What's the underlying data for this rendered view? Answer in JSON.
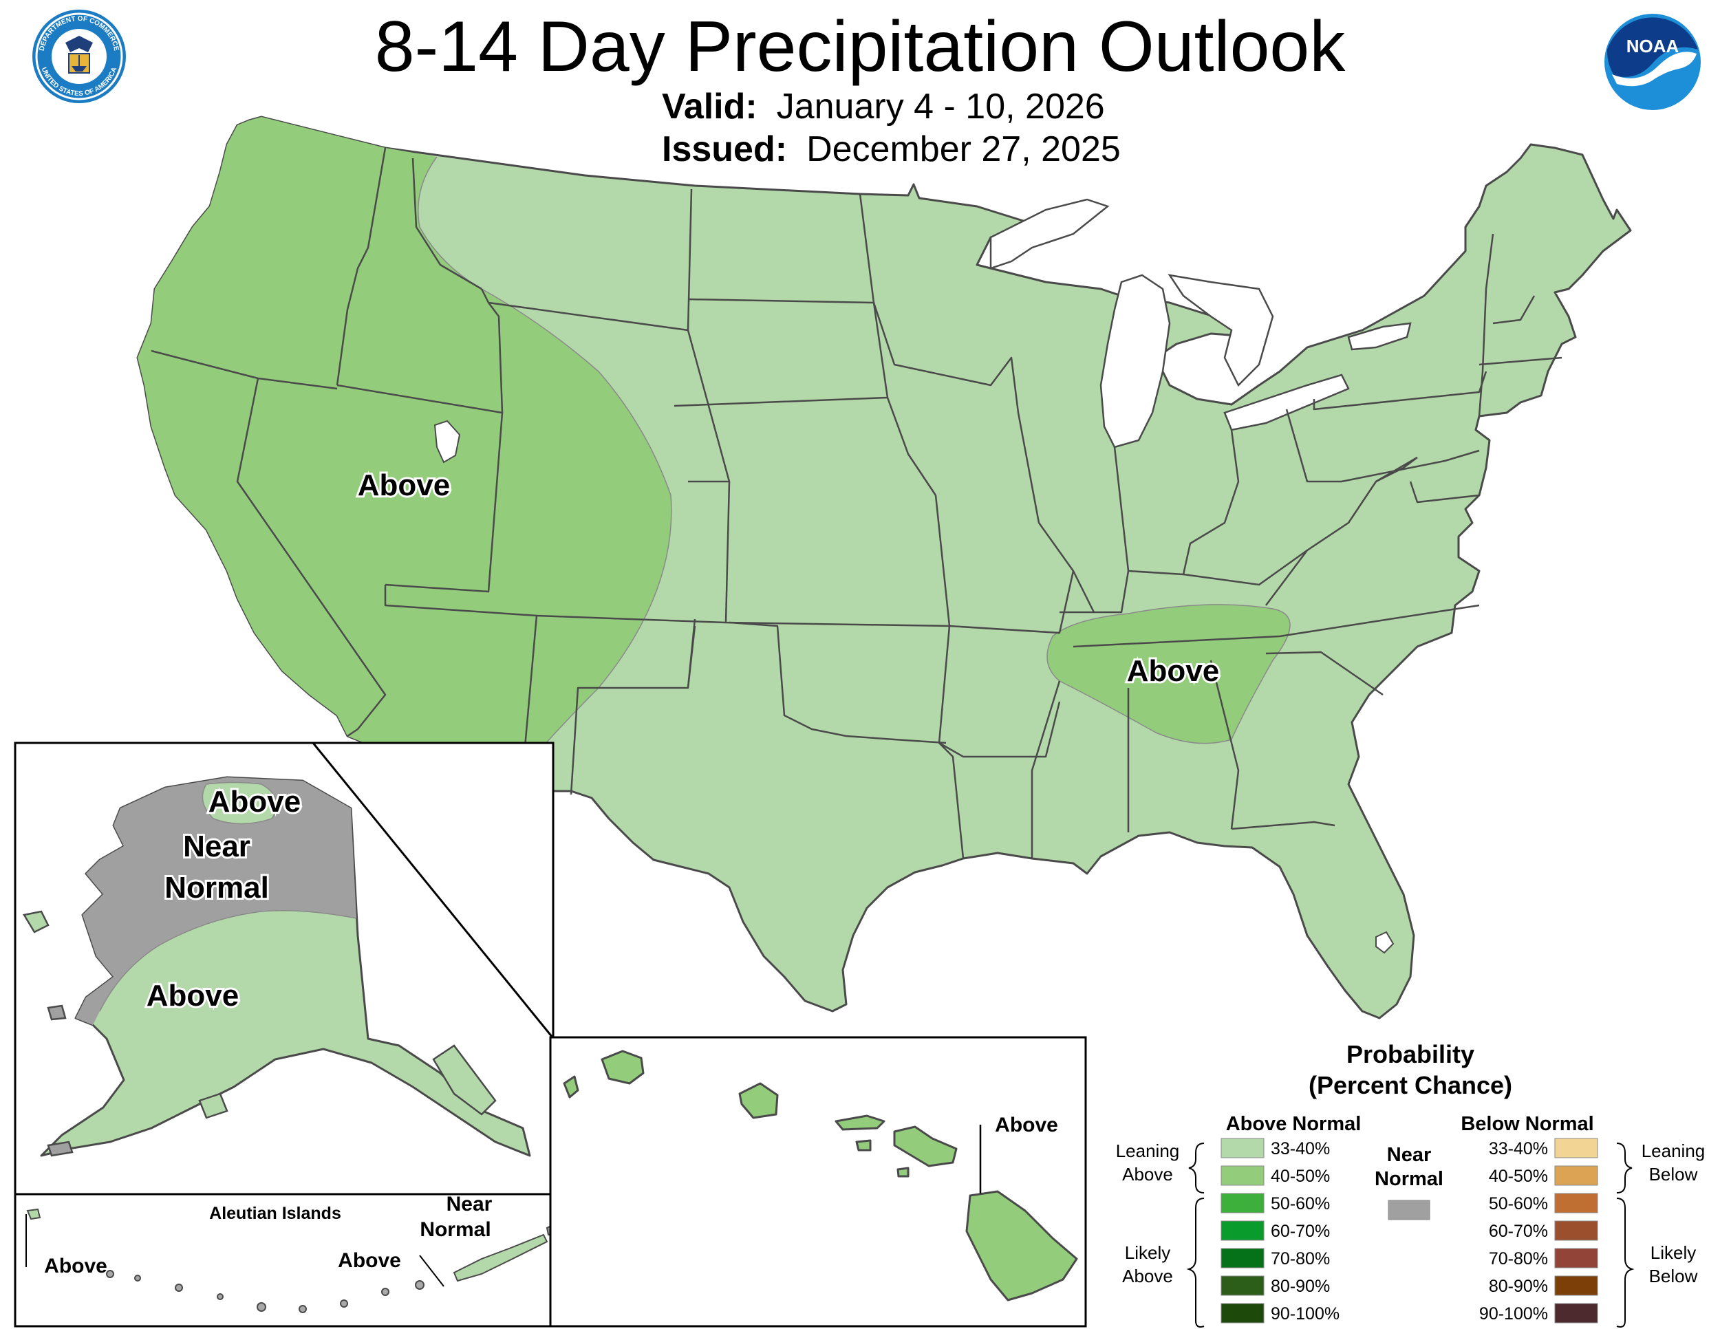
{
  "header": {
    "title": "8-14 Day Precipitation Outlook",
    "valid_label": "Valid:",
    "valid_value": "January 4 - 10, 2026",
    "issued_label": "Issued:",
    "issued_value": "December 27, 2025"
  },
  "logos": {
    "commerce_seal_text": [
      "DEPARTMENT OF COMMERCE",
      "UNITED STATES OF AMERICA"
    ],
    "noaa_text": "NOAA"
  },
  "map": {
    "conus_labels": [
      "Above",
      "Above"
    ],
    "alaska_labels": [
      "Above",
      "Near Normal",
      "Above"
    ],
    "aleutian": {
      "title": "Aleutian Islands",
      "labels": [
        "Above",
        "Above",
        "Near Normal"
      ]
    },
    "hawaii_label": "Above"
  },
  "legend": {
    "title_line1": "Probability",
    "title_line2": "(Percent Chance)",
    "above_header": "Above Normal",
    "below_header": "Below Normal",
    "near_normal": "Near Normal",
    "leaning_above": "Leaning Above",
    "likely_above": "Likely Above",
    "leaning_below": "Leaning Below",
    "likely_below": "Likely Below",
    "above": [
      {
        "label": "33-40%",
        "color": "#b3d8a9"
      },
      {
        "label": "40-50%",
        "color": "#93cd7c"
      },
      {
        "label": "50-60%",
        "color": "#3db03b"
      },
      {
        "label": "60-70%",
        "color": "#099b2c"
      },
      {
        "label": "70-80%",
        "color": "#05721a"
      },
      {
        "label": "80-90%",
        "color": "#2c5e1a"
      },
      {
        "label": "90-100%",
        "color": "#1d4a0a"
      }
    ],
    "below": [
      {
        "label": "33-40%",
        "color": "#f2d594"
      },
      {
        "label": "40-50%",
        "color": "#dba353"
      },
      {
        "label": "50-60%",
        "color": "#c06f32"
      },
      {
        "label": "60-70%",
        "color": "#9b4f2c"
      },
      {
        "label": "70-80%",
        "color": "#934438"
      },
      {
        "label": "80-90%",
        "color": "#7b3f07"
      },
      {
        "label": "90-100%",
        "color": "#4d2a2e"
      }
    ],
    "near_normal_color": "#a0a0a0"
  }
}
